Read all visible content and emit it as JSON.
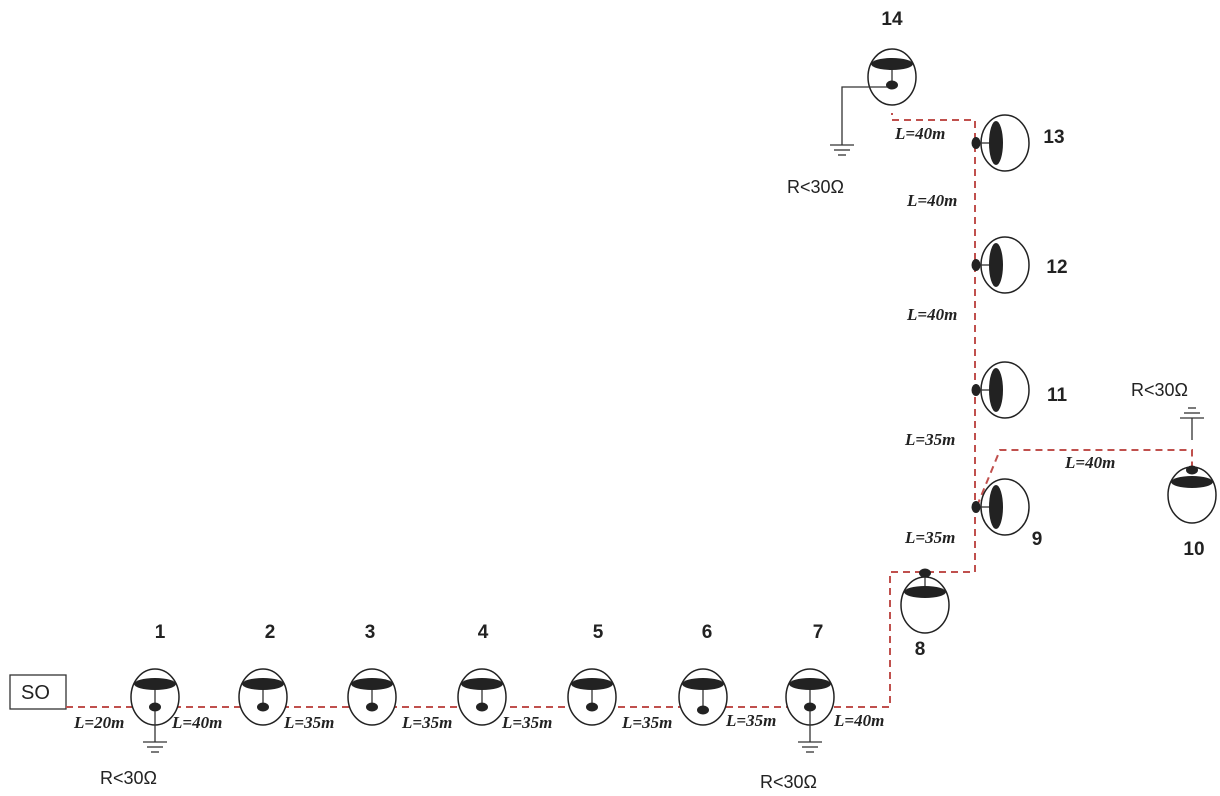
{
  "source_box": {
    "label": "SO"
  },
  "lamps": [
    {
      "id": "lamp-1",
      "label": "1"
    },
    {
      "id": "lamp-2",
      "label": "2"
    },
    {
      "id": "lamp-3",
      "label": "3"
    },
    {
      "id": "lamp-4",
      "label": "4"
    },
    {
      "id": "lamp-5",
      "label": "5"
    },
    {
      "id": "lamp-6",
      "label": "6"
    },
    {
      "id": "lamp-7",
      "label": "7"
    },
    {
      "id": "lamp-8",
      "label": "8"
    },
    {
      "id": "lamp-9",
      "label": "9"
    },
    {
      "id": "lamp-10",
      "label": "10"
    },
    {
      "id": "lamp-11",
      "label": "11"
    },
    {
      "id": "lamp-12",
      "label": "12"
    },
    {
      "id": "lamp-13",
      "label": "13"
    },
    {
      "id": "lamp-14",
      "label": "14"
    }
  ],
  "segments": [
    {
      "id": "seg-so-1",
      "label": "L=20m"
    },
    {
      "id": "seg-1-2",
      "label": "L=40m"
    },
    {
      "id": "seg-2-3",
      "label": "L=35m"
    },
    {
      "id": "seg-3-4",
      "label": "L=35m"
    },
    {
      "id": "seg-4-5",
      "label": "L=35m"
    },
    {
      "id": "seg-5-6",
      "label": "L=35m"
    },
    {
      "id": "seg-6-7",
      "label": "L=35m"
    },
    {
      "id": "seg-7-8",
      "label": "L=40m"
    },
    {
      "id": "seg-8-9",
      "label": "L=35m"
    },
    {
      "id": "seg-9-11",
      "label": "L=35m"
    },
    {
      "id": "seg-9-10",
      "label": "L=40m"
    },
    {
      "id": "seg-11-12",
      "label": "L=40m"
    },
    {
      "id": "seg-12-13",
      "label": "L=40m"
    },
    {
      "id": "seg-13-14",
      "label": "L=40m"
    }
  ],
  "groundings": [
    {
      "id": "ground-lamp-1",
      "label": "R<30Ω"
    },
    {
      "id": "ground-lamp-7",
      "label": "R<30Ω"
    },
    {
      "id": "ground-lamp-10",
      "label": "R<30Ω"
    },
    {
      "id": "ground-lamp-14",
      "label": "R<30Ω"
    }
  ]
}
